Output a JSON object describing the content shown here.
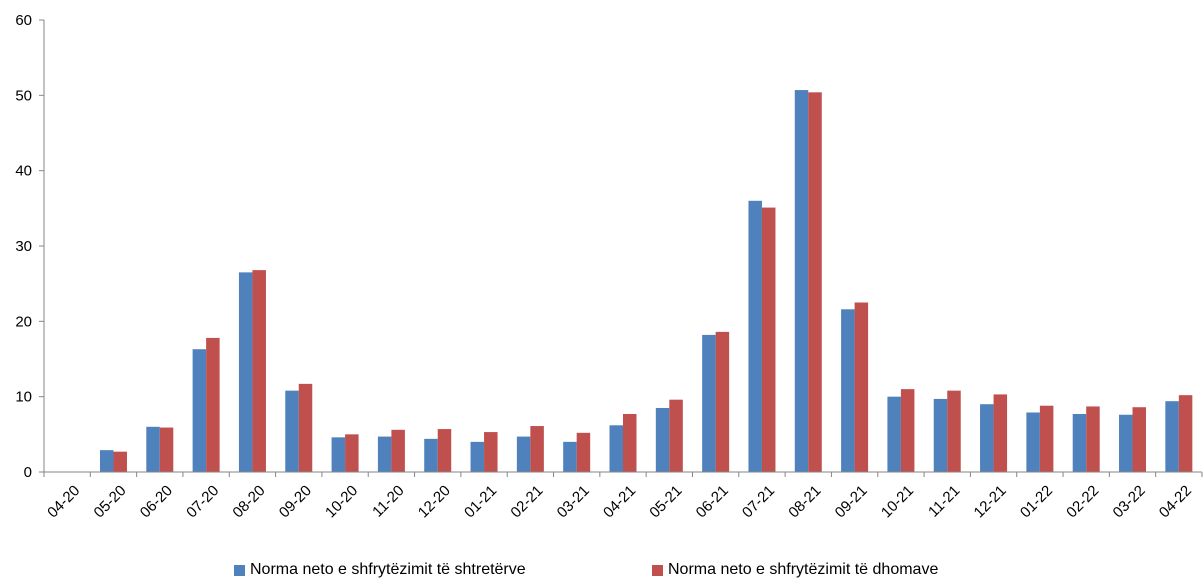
{
  "chart_data": {
    "type": "bar",
    "title": "",
    "xlabel": "",
    "ylabel": "",
    "ylim": [
      0,
      60
    ],
    "yticks": [
      0,
      10,
      20,
      30,
      40,
      50,
      60
    ],
    "grid": false,
    "legend_position": "bottom",
    "categories": [
      "04-20",
      "05-20",
      "06-20",
      "07-20",
      "08-20",
      "09-20",
      "10-20",
      "11-20",
      "12-20",
      "01-21",
      "02-21",
      "03-21",
      "04-21",
      "05-21",
      "06-21",
      "07-21",
      "08-21",
      "09-21",
      "10-21",
      "11-21",
      "12-21",
      "01-22",
      "02-22",
      "03-22",
      "04-22"
    ],
    "series": [
      {
        "name": "Norma neto e shfrytëzimit të shtretërve",
        "color": "#4f81bd",
        "values": [
          0,
          2.9,
          6.0,
          16.3,
          26.5,
          10.8,
          4.6,
          4.7,
          4.4,
          4.0,
          4.7,
          4.0,
          6.2,
          8.5,
          18.2,
          36.0,
          50.7,
          21.6,
          10.0,
          9.7,
          9.0,
          7.9,
          7.7,
          7.6,
          9.4
        ]
      },
      {
        "name": "Norma neto e shfrytëzimit të dhomave",
        "color": "#c0504d",
        "values": [
          0,
          2.7,
          5.9,
          17.8,
          26.8,
          11.7,
          5.0,
          5.6,
          5.7,
          5.3,
          6.1,
          5.2,
          7.7,
          9.6,
          18.6,
          35.1,
          50.4,
          22.5,
          11.0,
          10.8,
          10.3,
          8.8,
          8.7,
          8.6,
          10.2
        ]
      }
    ]
  }
}
